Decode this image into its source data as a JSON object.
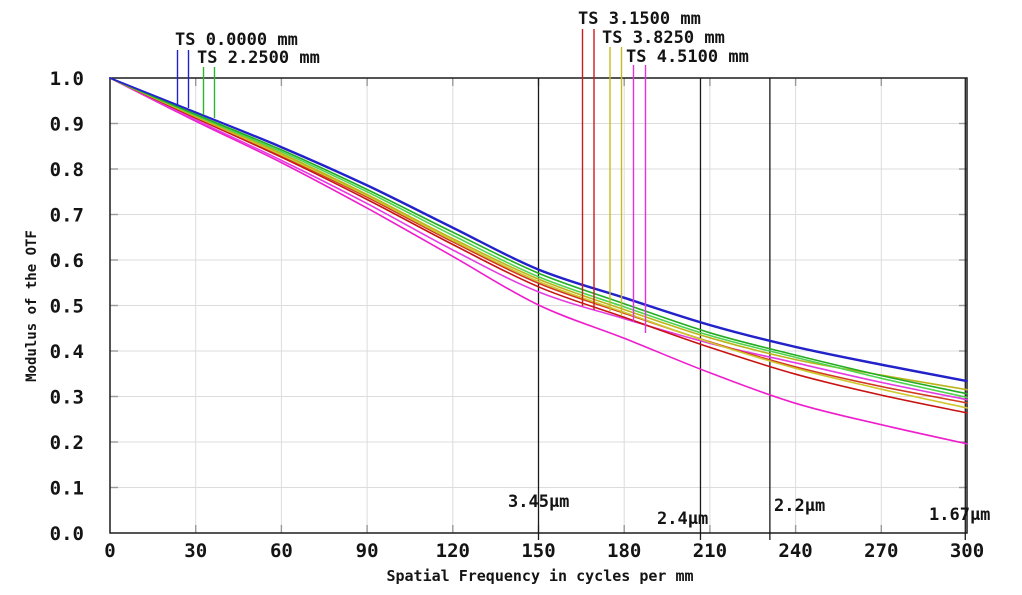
{
  "chart_data": {
    "type": "line",
    "title": "",
    "xlabel": "Spatial Frequency in cycles per mm",
    "ylabel": "Modulus of the OTF",
    "xlim": [
      0,
      300
    ],
    "ylim": [
      0.0,
      1.0
    ],
    "xticks": [
      0,
      30,
      60,
      90,
      120,
      150,
      180,
      210,
      240,
      270,
      300
    ],
    "yticks": [
      0.0,
      0.1,
      0.2,
      0.3,
      0.4,
      0.5,
      0.6,
      0.7,
      0.8,
      0.9,
      1.0
    ],
    "grid": true,
    "legend_position": "top",
    "x": [
      0,
      30,
      60,
      90,
      120,
      150,
      180,
      210,
      240,
      270,
      300
    ],
    "series": [
      {
        "name": "TS 4.5100 mm (T)",
        "legend": "TS 4.5100 mm",
        "component": "tangential",
        "color": "#ee1ecd",
        "values": [
          1.0,
          0.905,
          0.814,
          0.714,
          0.608,
          0.501,
          0.428,
          0.352,
          0.285,
          0.238,
          0.196
        ]
      },
      {
        "name": "TS 4.5100 mm (S)",
        "legend": "TS 4.5100 mm",
        "component": "sagittal",
        "color": "#e43ce2",
        "values": [
          1.0,
          0.908,
          0.819,
          0.724,
          0.622,
          0.53,
          0.471,
          0.417,
          0.374,
          0.331,
          0.293
        ]
      },
      {
        "name": "TS 3.1500 mm (T)",
        "legend": "TS 3.1500 mm",
        "component": "tangential",
        "color": "#c81313",
        "values": [
          1.0,
          0.912,
          0.826,
          0.733,
          0.634,
          0.541,
          0.474,
          0.408,
          0.349,
          0.303,
          0.264
        ]
      },
      {
        "name": "TS 3.1500 mm (S)",
        "legend": "TS 3.1500 mm",
        "component": "sagittal",
        "color": "#d3391f",
        "values": [
          1.0,
          0.914,
          0.829,
          0.738,
          0.64,
          0.549,
          0.483,
          0.42,
          0.365,
          0.322,
          0.286
        ]
      },
      {
        "name": "TS 3.8250 mm (T)",
        "legend": "TS 3.8250 mm",
        "component": "tangential",
        "color": "#cec72e",
        "values": [
          1.0,
          0.915,
          0.831,
          0.741,
          0.643,
          0.553,
          0.485,
          0.419,
          0.362,
          0.316,
          0.275
        ]
      },
      {
        "name": "TS 3.8250 mm (S)",
        "legend": "TS 3.8250 mm",
        "component": "sagittal",
        "color": "#bdb41c",
        "values": [
          1.0,
          0.916,
          0.834,
          0.744,
          0.647,
          0.558,
          0.491,
          0.429,
          0.381,
          0.347,
          0.315
        ]
      },
      {
        "name": "TS 2.2500 mm (T)",
        "legend": "TS 2.2500 mm",
        "component": "tangential",
        "color": "#4ed44e",
        "values": [
          1.0,
          0.918,
          0.838,
          0.75,
          0.654,
          0.563,
          0.497,
          0.434,
          0.386,
          0.34,
          0.298
        ]
      },
      {
        "name": "TS 2.2500 mm (S)",
        "legend": "TS 2.2500 mm",
        "component": "sagittal",
        "color": "#22ad22",
        "values": [
          1.0,
          0.92,
          0.842,
          0.755,
          0.661,
          0.571,
          0.504,
          0.44,
          0.391,
          0.346,
          0.306
        ]
      },
      {
        "name": "TS 0.0000 mm (T)",
        "legend": "TS 0.0000 mm",
        "component": "tangential",
        "color": "#1f1fb8",
        "values": [
          1.0,
          0.924,
          0.847,
          0.763,
          0.67,
          0.578,
          0.516,
          0.456,
          0.408,
          0.369,
          0.333
        ]
      },
      {
        "name": "TS 0.0000 mm (S)",
        "legend": "TS 0.0000 mm",
        "component": "sagittal",
        "color": "#2323d2",
        "values": [
          1.0,
          0.925,
          0.849,
          0.765,
          0.672,
          0.58,
          0.518,
          0.458,
          0.41,
          0.371,
          0.335
        ]
      }
    ],
    "legend": [
      {
        "label": "TS 0.0000 mm",
        "color": "#2222cc"
      },
      {
        "label": "TS 2.2500 mm",
        "color": "#2db32d"
      },
      {
        "label": "TS 3.1500 mm",
        "color": "#cc1d1d"
      },
      {
        "label": "TS 3.8250 mm",
        "color": "#c6bc20"
      },
      {
        "label": "TS 4.5100 mm",
        "color": "#e531dc"
      }
    ],
    "nyquist_lines": [
      {
        "label": "3.45µm",
        "x": 150.0
      },
      {
        "label": "2.4µm",
        "x": 206.7
      },
      {
        "label": "2.2µm",
        "x": 231.0
      },
      {
        "label": "1.67µm",
        "x": 299.4
      }
    ]
  }
}
